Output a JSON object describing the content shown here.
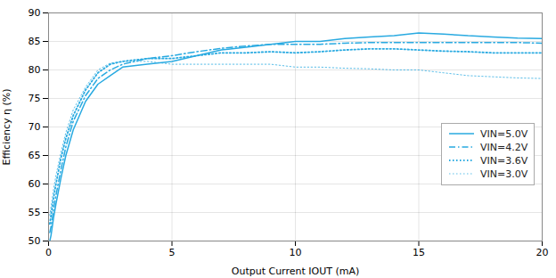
{
  "chart_data": {
    "type": "line",
    "xlabel": "Output Current IOUT (mA)",
    "ylabel": "Efficiency η (%)",
    "xlim": [
      0,
      20
    ],
    "ylim": [
      50,
      90
    ],
    "xticks": [
      0,
      5,
      10,
      15,
      20
    ],
    "yticks": [
      50,
      55,
      60,
      65,
      70,
      75,
      80,
      85,
      90
    ],
    "grid": true,
    "legend": "right",
    "color": "#29aae1",
    "x": [
      0.05,
      0.1,
      0.2,
      0.3,
      0.5,
      0.7,
      1.0,
      1.5,
      2.0,
      2.5,
      3.0,
      4.0,
      5.0,
      6.0,
      7.0,
      8.0,
      9.0,
      10.0,
      11.0,
      12.0,
      13.0,
      14.0,
      15.0,
      16.0,
      17.0,
      18.0,
      19.0,
      20.0
    ],
    "series": [
      {
        "name": "VIN=5.0V",
        "line_style": "solid",
        "values": [
          50.0,
          51.0,
          54.0,
          56.5,
          61.0,
          65.0,
          69.5,
          74.5,
          77.5,
          79.0,
          80.5,
          81.0,
          81.5,
          82.5,
          83.5,
          84.0,
          84.5,
          85.0,
          85.0,
          85.5,
          85.8,
          86.0,
          86.5,
          86.3,
          86.0,
          85.8,
          85.6,
          85.5
        ]
      },
      {
        "name": "VIN=4.2V",
        "line_style": "dashdot",
        "values": [
          51.5,
          52.5,
          55.5,
          58.0,
          62.5,
          66.5,
          71.0,
          75.5,
          78.5,
          80.0,
          81.0,
          82.0,
          82.5,
          83.2,
          83.8,
          84.2,
          84.5,
          84.5,
          84.5,
          84.7,
          84.8,
          84.8,
          84.8,
          84.8,
          84.8,
          84.8,
          84.8,
          84.7
        ]
      },
      {
        "name": "VIN=3.6V",
        "line_style": "dotted",
        "values": [
          53.0,
          54.5,
          57.5,
          60.0,
          64.5,
          68.0,
          72.0,
          76.5,
          79.5,
          81.0,
          81.5,
          82.0,
          82.0,
          82.5,
          83.0,
          83.0,
          83.2,
          83.0,
          83.2,
          83.5,
          83.7,
          83.7,
          83.5,
          83.3,
          83.2,
          83.0,
          83.0,
          83.0
        ]
      },
      {
        "name": "VIN=3.0V",
        "line_style": "dotted",
        "values": [
          54.5,
          56.0,
          59.0,
          61.5,
          65.5,
          69.0,
          73.0,
          77.0,
          80.0,
          81.2,
          81.5,
          81.5,
          81.0,
          81.0,
          81.0,
          81.0,
          81.0,
          80.5,
          80.5,
          80.3,
          80.2,
          80.0,
          80.0,
          79.5,
          79.0,
          78.8,
          78.6,
          78.5
        ]
      }
    ]
  }
}
